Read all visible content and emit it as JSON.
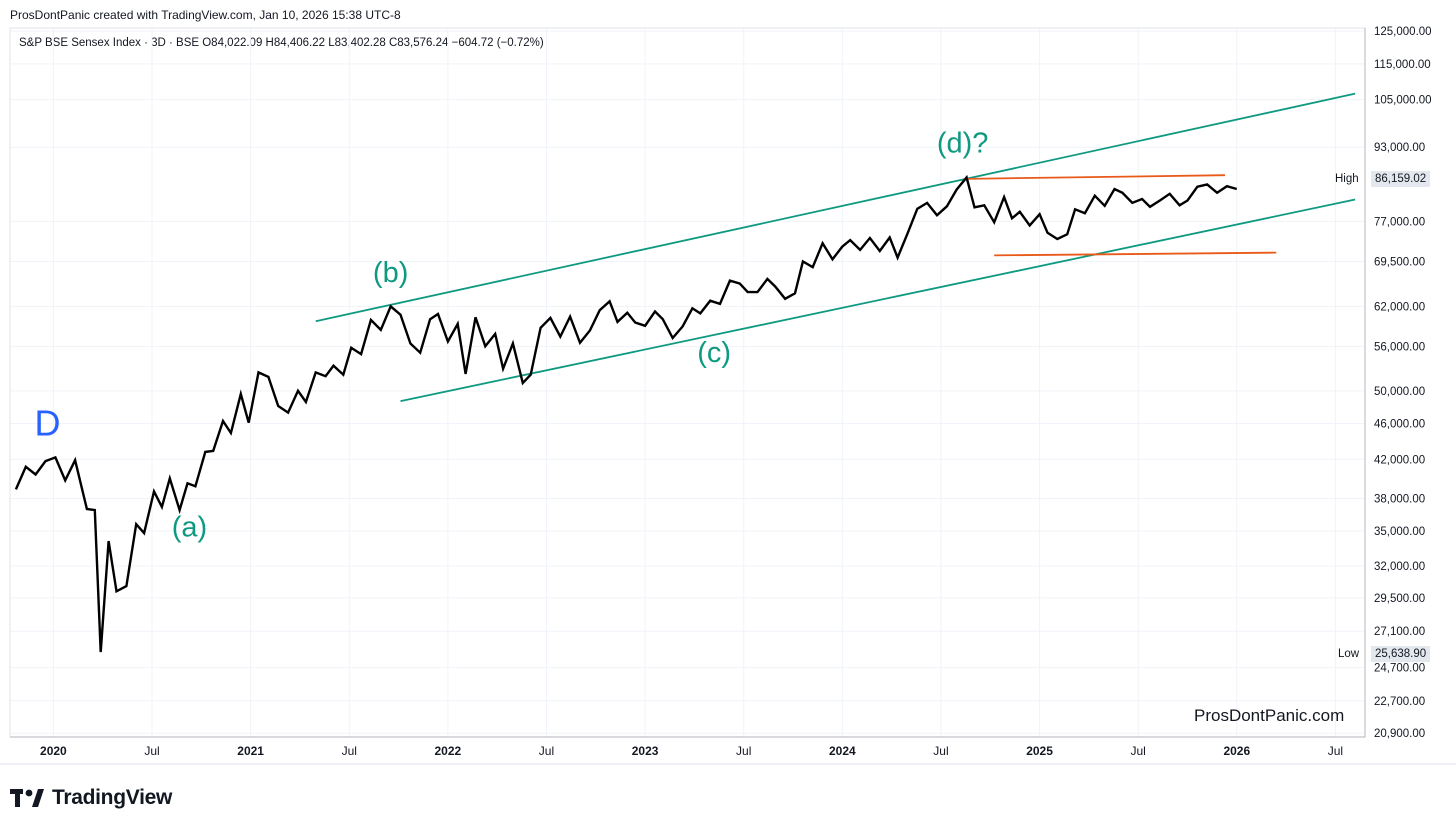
{
  "header": {
    "caption": "ProsDontPanic created with TradingView.com, Jan 10, 2026 15:38 UTC-8",
    "legend": "S&P BSE Sensex Index · 3D · BSE  O84,022.09  H84,406.22  L83,402.28  C83,576.24  −604.72 (−0.72%)"
  },
  "watermark": "ProsDontPanic.com",
  "footer": {
    "brand": "TradingView"
  },
  "price_markers": {
    "high_label": "High",
    "high_value": "86,159.02",
    "low_label": "Low",
    "low_value": "25,638.90"
  },
  "colors": {
    "price_line": "#000000",
    "channel": "#0e9981",
    "range": "#e8591a",
    "wave_label": "#0e9981",
    "degree_label": "#2962ff",
    "grid": "#f0f3fa"
  },
  "chart_data": {
    "type": "line",
    "title": "S&P BSE Sensex Index",
    "scale": "log",
    "ylim": [
      20700,
      126000
    ],
    "xlim": [
      2019.78,
      2026.65
    ],
    "y_ticks": [
      {
        "value": 125000,
        "label": "125,000.00"
      },
      {
        "value": 115000,
        "label": "115,000.00"
      },
      {
        "value": 105000,
        "label": "105,000.00"
      },
      {
        "value": 93000,
        "label": "93,000.00"
      },
      {
        "value": 77000,
        "label": "77,000.00"
      },
      {
        "value": 69500,
        "label": "69,500.00"
      },
      {
        "value": 62000,
        "label": "62,000.00"
      },
      {
        "value": 56000,
        "label": "56,000.00"
      },
      {
        "value": 50000,
        "label": "50,000.00"
      },
      {
        "value": 46000,
        "label": "46,000.00"
      },
      {
        "value": 42000,
        "label": "42,000.00"
      },
      {
        "value": 38000,
        "label": "38,000.00"
      },
      {
        "value": 35000,
        "label": "35,000.00"
      },
      {
        "value": 32000,
        "label": "32,000.00"
      },
      {
        "value": 29500,
        "label": "29,500.00"
      },
      {
        "value": 27100,
        "label": "27,100.00"
      },
      {
        "value": 24700,
        "label": "24,700.00"
      },
      {
        "value": 22700,
        "label": "22,700.00"
      },
      {
        "value": 20900,
        "label": "20,900.00"
      }
    ],
    "x_ticks": [
      {
        "value": 2020.0,
        "label": "2020",
        "bold": true
      },
      {
        "value": 2020.5,
        "label": "Jul",
        "bold": false
      },
      {
        "value": 2021.0,
        "label": "2021",
        "bold": true
      },
      {
        "value": 2021.5,
        "label": "Jul",
        "bold": false
      },
      {
        "value": 2022.0,
        "label": "2022",
        "bold": true
      },
      {
        "value": 2022.5,
        "label": "Jul",
        "bold": false
      },
      {
        "value": 2023.0,
        "label": "2023",
        "bold": true
      },
      {
        "value": 2023.5,
        "label": "Jul",
        "bold": false
      },
      {
        "value": 2024.0,
        "label": "2024",
        "bold": true
      },
      {
        "value": 2024.5,
        "label": "Jul",
        "bold": false
      },
      {
        "value": 2025.0,
        "label": "2025",
        "bold": true
      },
      {
        "value": 2025.5,
        "label": "Jul",
        "bold": false
      },
      {
        "value": 2026.0,
        "label": "2026",
        "bold": true
      },
      {
        "value": 2026.5,
        "label": "Jul",
        "bold": false
      }
    ],
    "series": [
      {
        "name": "Close",
        "points": [
          [
            2019.81,
            38900
          ],
          [
            2019.86,
            41200
          ],
          [
            2019.91,
            40400
          ],
          [
            2019.96,
            41800
          ],
          [
            2020.01,
            42200
          ],
          [
            2020.06,
            39800
          ],
          [
            2020.11,
            41900
          ],
          [
            2020.17,
            37000
          ],
          [
            2020.21,
            36900
          ],
          [
            2020.24,
            25700
          ],
          [
            2020.28,
            34100
          ],
          [
            2020.32,
            30000
          ],
          [
            2020.37,
            30400
          ],
          [
            2020.42,
            35600
          ],
          [
            2020.46,
            34800
          ],
          [
            2020.51,
            38700
          ],
          [
            2020.55,
            37200
          ],
          [
            2020.59,
            40000
          ],
          [
            2020.64,
            36900
          ],
          [
            2020.68,
            39500
          ],
          [
            2020.72,
            39200
          ],
          [
            2020.77,
            42800
          ],
          [
            2020.81,
            42900
          ],
          [
            2020.86,
            46300
          ],
          [
            2020.9,
            44900
          ],
          [
            2020.95,
            49600
          ],
          [
            2020.99,
            46100
          ],
          [
            2021.04,
            52400
          ],
          [
            2021.09,
            51800
          ],
          [
            2021.14,
            48100
          ],
          [
            2021.19,
            47300
          ],
          [
            2021.24,
            50000
          ],
          [
            2021.28,
            48600
          ],
          [
            2021.33,
            52400
          ],
          [
            2021.38,
            51900
          ],
          [
            2021.42,
            53300
          ],
          [
            2021.47,
            52100
          ],
          [
            2021.51,
            55800
          ],
          [
            2021.56,
            54900
          ],
          [
            2021.61,
            59900
          ],
          [
            2021.66,
            58400
          ],
          [
            2021.71,
            62000
          ],
          [
            2021.76,
            60700
          ],
          [
            2021.81,
            56400
          ],
          [
            2021.86,
            55100
          ],
          [
            2021.91,
            60000
          ],
          [
            2021.95,
            60800
          ],
          [
            2022.0,
            56700
          ],
          [
            2022.05,
            59300
          ],
          [
            2022.09,
            52200
          ],
          [
            2022.14,
            60300
          ],
          [
            2022.19,
            56000
          ],
          [
            2022.24,
            57800
          ],
          [
            2022.28,
            52900
          ],
          [
            2022.33,
            56400
          ],
          [
            2022.38,
            51000
          ],
          [
            2022.42,
            52100
          ],
          [
            2022.47,
            58700
          ],
          [
            2022.52,
            60200
          ],
          [
            2022.57,
            57400
          ],
          [
            2022.62,
            60400
          ],
          [
            2022.67,
            56500
          ],
          [
            2022.72,
            58300
          ],
          [
            2022.77,
            61400
          ],
          [
            2022.82,
            62800
          ],
          [
            2022.86,
            59600
          ],
          [
            2022.91,
            61000
          ],
          [
            2022.95,
            59500
          ],
          [
            2023.0,
            59000
          ],
          [
            2023.05,
            61200
          ],
          [
            2023.09,
            60000
          ],
          [
            2023.14,
            57200
          ],
          [
            2023.19,
            58900
          ],
          [
            2023.24,
            61700
          ],
          [
            2023.28,
            60900
          ],
          [
            2023.33,
            62900
          ],
          [
            2023.38,
            62400
          ],
          [
            2023.43,
            66200
          ],
          [
            2023.48,
            65700
          ],
          [
            2023.52,
            64300
          ],
          [
            2023.57,
            64300
          ],
          [
            2023.62,
            66500
          ],
          [
            2023.66,
            65200
          ],
          [
            2023.71,
            63200
          ],
          [
            2023.76,
            64100
          ],
          [
            2023.8,
            69500
          ],
          [
            2023.85,
            68500
          ],
          [
            2023.9,
            72800
          ],
          [
            2023.95,
            69900
          ],
          [
            2024.0,
            72200
          ],
          [
            2024.04,
            73400
          ],
          [
            2024.09,
            71600
          ],
          [
            2024.14,
            73800
          ],
          [
            2024.19,
            71400
          ],
          [
            2024.24,
            73900
          ],
          [
            2024.28,
            70200
          ],
          [
            2024.33,
            74600
          ],
          [
            2024.38,
            79500
          ],
          [
            2024.43,
            80700
          ],
          [
            2024.48,
            78200
          ],
          [
            2024.53,
            80000
          ],
          [
            2024.58,
            83500
          ],
          [
            2024.63,
            86100
          ],
          [
            2024.67,
            79800
          ],
          [
            2024.72,
            80200
          ],
          [
            2024.77,
            76800
          ],
          [
            2024.82,
            81900
          ],
          [
            2024.86,
            77600
          ],
          [
            2024.9,
            78900
          ],
          [
            2024.95,
            76200
          ],
          [
            2025.0,
            78400
          ],
          [
            2025.04,
            74800
          ],
          [
            2025.09,
            73600
          ],
          [
            2025.14,
            74500
          ],
          [
            2025.18,
            79400
          ],
          [
            2025.23,
            78600
          ],
          [
            2025.28,
            82200
          ],
          [
            2025.33,
            80100
          ],
          [
            2025.38,
            83600
          ],
          [
            2025.42,
            82800
          ],
          [
            2025.47,
            80700
          ],
          [
            2025.52,
            81500
          ],
          [
            2025.56,
            79900
          ],
          [
            2025.61,
            81200
          ],
          [
            2025.66,
            82600
          ],
          [
            2025.71,
            80200
          ],
          [
            2025.75,
            81200
          ],
          [
            2025.8,
            84100
          ],
          [
            2025.85,
            84600
          ],
          [
            2025.9,
            82800
          ],
          [
            2025.95,
            84200
          ],
          [
            2026.0,
            83600
          ]
        ]
      }
    ],
    "channel_lines": [
      {
        "name": "upper-channel",
        "points": [
          [
            2021.33,
            59700
          ],
          [
            2026.6,
            106600
          ]
        ]
      },
      {
        "name": "lower-channel",
        "points": [
          [
            2021.76,
            48700
          ],
          [
            2026.6,
            81400
          ]
        ]
      }
    ],
    "range_lines": [
      {
        "name": "range-top",
        "points": [
          [
            2024.63,
            85800
          ],
          [
            2025.94,
            86600
          ]
        ]
      },
      {
        "name": "range-bottom",
        "points": [
          [
            2024.77,
            70600
          ],
          [
            2026.2,
            71100
          ]
        ]
      }
    ],
    "annotations": [
      {
        "name": "wave-label-D",
        "text": "D",
        "x": 2019.97,
        "y": 44600,
        "style": "degree"
      },
      {
        "name": "wave-label-a",
        "text": "(a)",
        "x": 2020.69,
        "y": 34500,
        "style": "wave"
      },
      {
        "name": "wave-label-b",
        "text": "(b)",
        "x": 2021.71,
        "y": 66000,
        "style": "wave"
      },
      {
        "name": "wave-label-c",
        "text": "(c)",
        "x": 2023.35,
        "y": 53800,
        "style": "wave"
      },
      {
        "name": "wave-label-d",
        "text": "(d)?",
        "x": 2024.61,
        "y": 91800,
        "style": "wave"
      }
    ],
    "last_value": 83576.24,
    "high": 86159.02,
    "low": 25638.9
  }
}
